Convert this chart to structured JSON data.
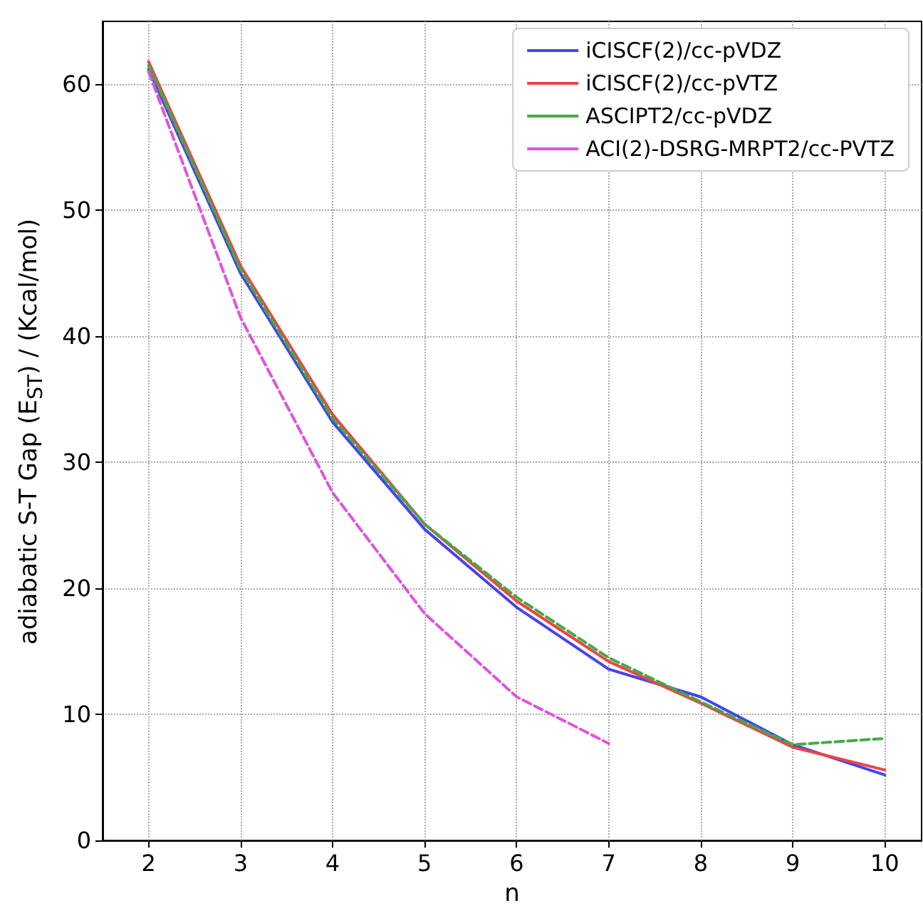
{
  "chart_data": {
    "type": "line",
    "xlabel": "n",
    "ylabel": "adiabatic S-T Gap (E$_{ST}$) / (Kcal/mol)",
    "x": [
      2,
      3,
      4,
      5,
      6,
      7,
      8,
      9,
      10
    ],
    "xlim": [
      1.5,
      10.4
    ],
    "xticks": [
      2,
      3,
      4,
      5,
      6,
      7,
      8,
      9,
      10
    ],
    "ylim": [
      0,
      65
    ],
    "yticks": [
      0,
      10,
      20,
      30,
      40,
      50,
      60
    ],
    "grid": true,
    "legend": "top right",
    "marker": "none",
    "series": [
      {
        "name": "iCISCF(2)/cc-pVDZ",
        "color": "#4444ee",
        "line_style": "solid",
        "values": [
          61.2,
          45.0,
          33.2,
          24.7,
          18.5,
          13.6,
          11.4,
          7.6,
          5.2
        ]
      },
      {
        "name": "iCISCF(2)/cc-pVTZ",
        "color": "#ee4444",
        "line_style": "solid",
        "values": [
          61.8,
          45.6,
          33.8,
          25.1,
          19.0,
          14.2,
          10.9,
          7.4,
          5.6
        ]
      },
      {
        "name": "ASCIPT2/cc-pVDZ",
        "color": "#44aa44",
        "line_style": "dashed",
        "values": [
          61.5,
          45.3,
          33.5,
          25.1,
          19.3,
          14.5,
          11.0,
          7.6,
          8.1
        ]
      },
      {
        "name": "ACI(2)-DSRG-MRPT2/cc-PVTZ",
        "color": "#dd55dd",
        "line_style": "dashed",
        "values": [
          61.0,
          41.5,
          27.6,
          18.0,
          11.4,
          7.7,
          null,
          null,
          null
        ]
      }
    ]
  }
}
